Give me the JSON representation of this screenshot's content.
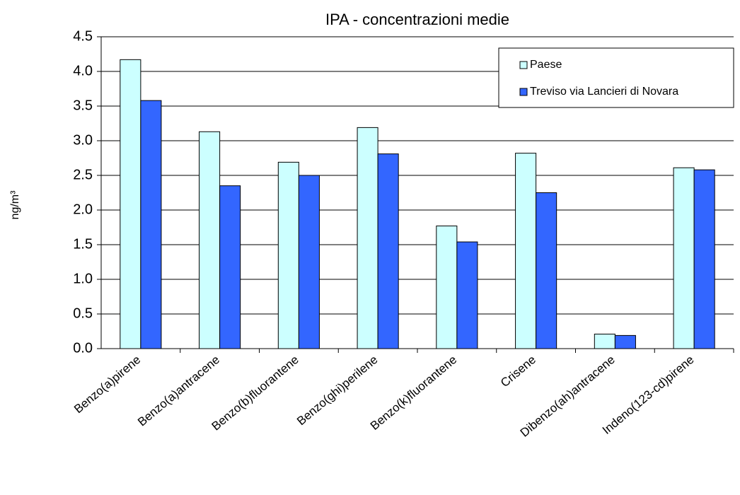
{
  "chart_data": {
    "type": "bar",
    "title": "IPA - concentrazioni medie",
    "y_label": "ng/m³",
    "categories": [
      "Benzo(a)pirene",
      "Benzo(a)antracene",
      "Benzo(b)fluorantene",
      "Benzo(ghi)perilene",
      "Benzo(k)fluorantene",
      "Crisene",
      "Dibenzo(ah)antracene",
      "Indeno(123-cd)pirene"
    ],
    "series": [
      {
        "name": "Paese",
        "color": "#ccffff",
        "values": [
          4.17,
          3.13,
          2.69,
          3.19,
          1.77,
          2.82,
          0.21,
          2.61
        ]
      },
      {
        "name": "Treviso via Lancieri di Novara",
        "color": "#3366ff",
        "values": [
          3.58,
          2.35,
          2.5,
          2.81,
          1.54,
          2.25,
          0.19,
          2.58
        ]
      }
    ],
    "ylim": [
      0,
      4.5
    ],
    "yticks": [
      {
        "value": 0,
        "label": "0.0"
      },
      0.5,
      {
        "value": 1,
        "label": "1.0"
      },
      1.5,
      {
        "value": 2,
        "label": "2.0"
      },
      2.5,
      {
        "value": 3,
        "label": "3.0"
      },
      3.5,
      {
        "value": 4,
        "label": "4.0"
      },
      4.5
    ],
    "grid": true,
    "legend": "top-right"
  }
}
